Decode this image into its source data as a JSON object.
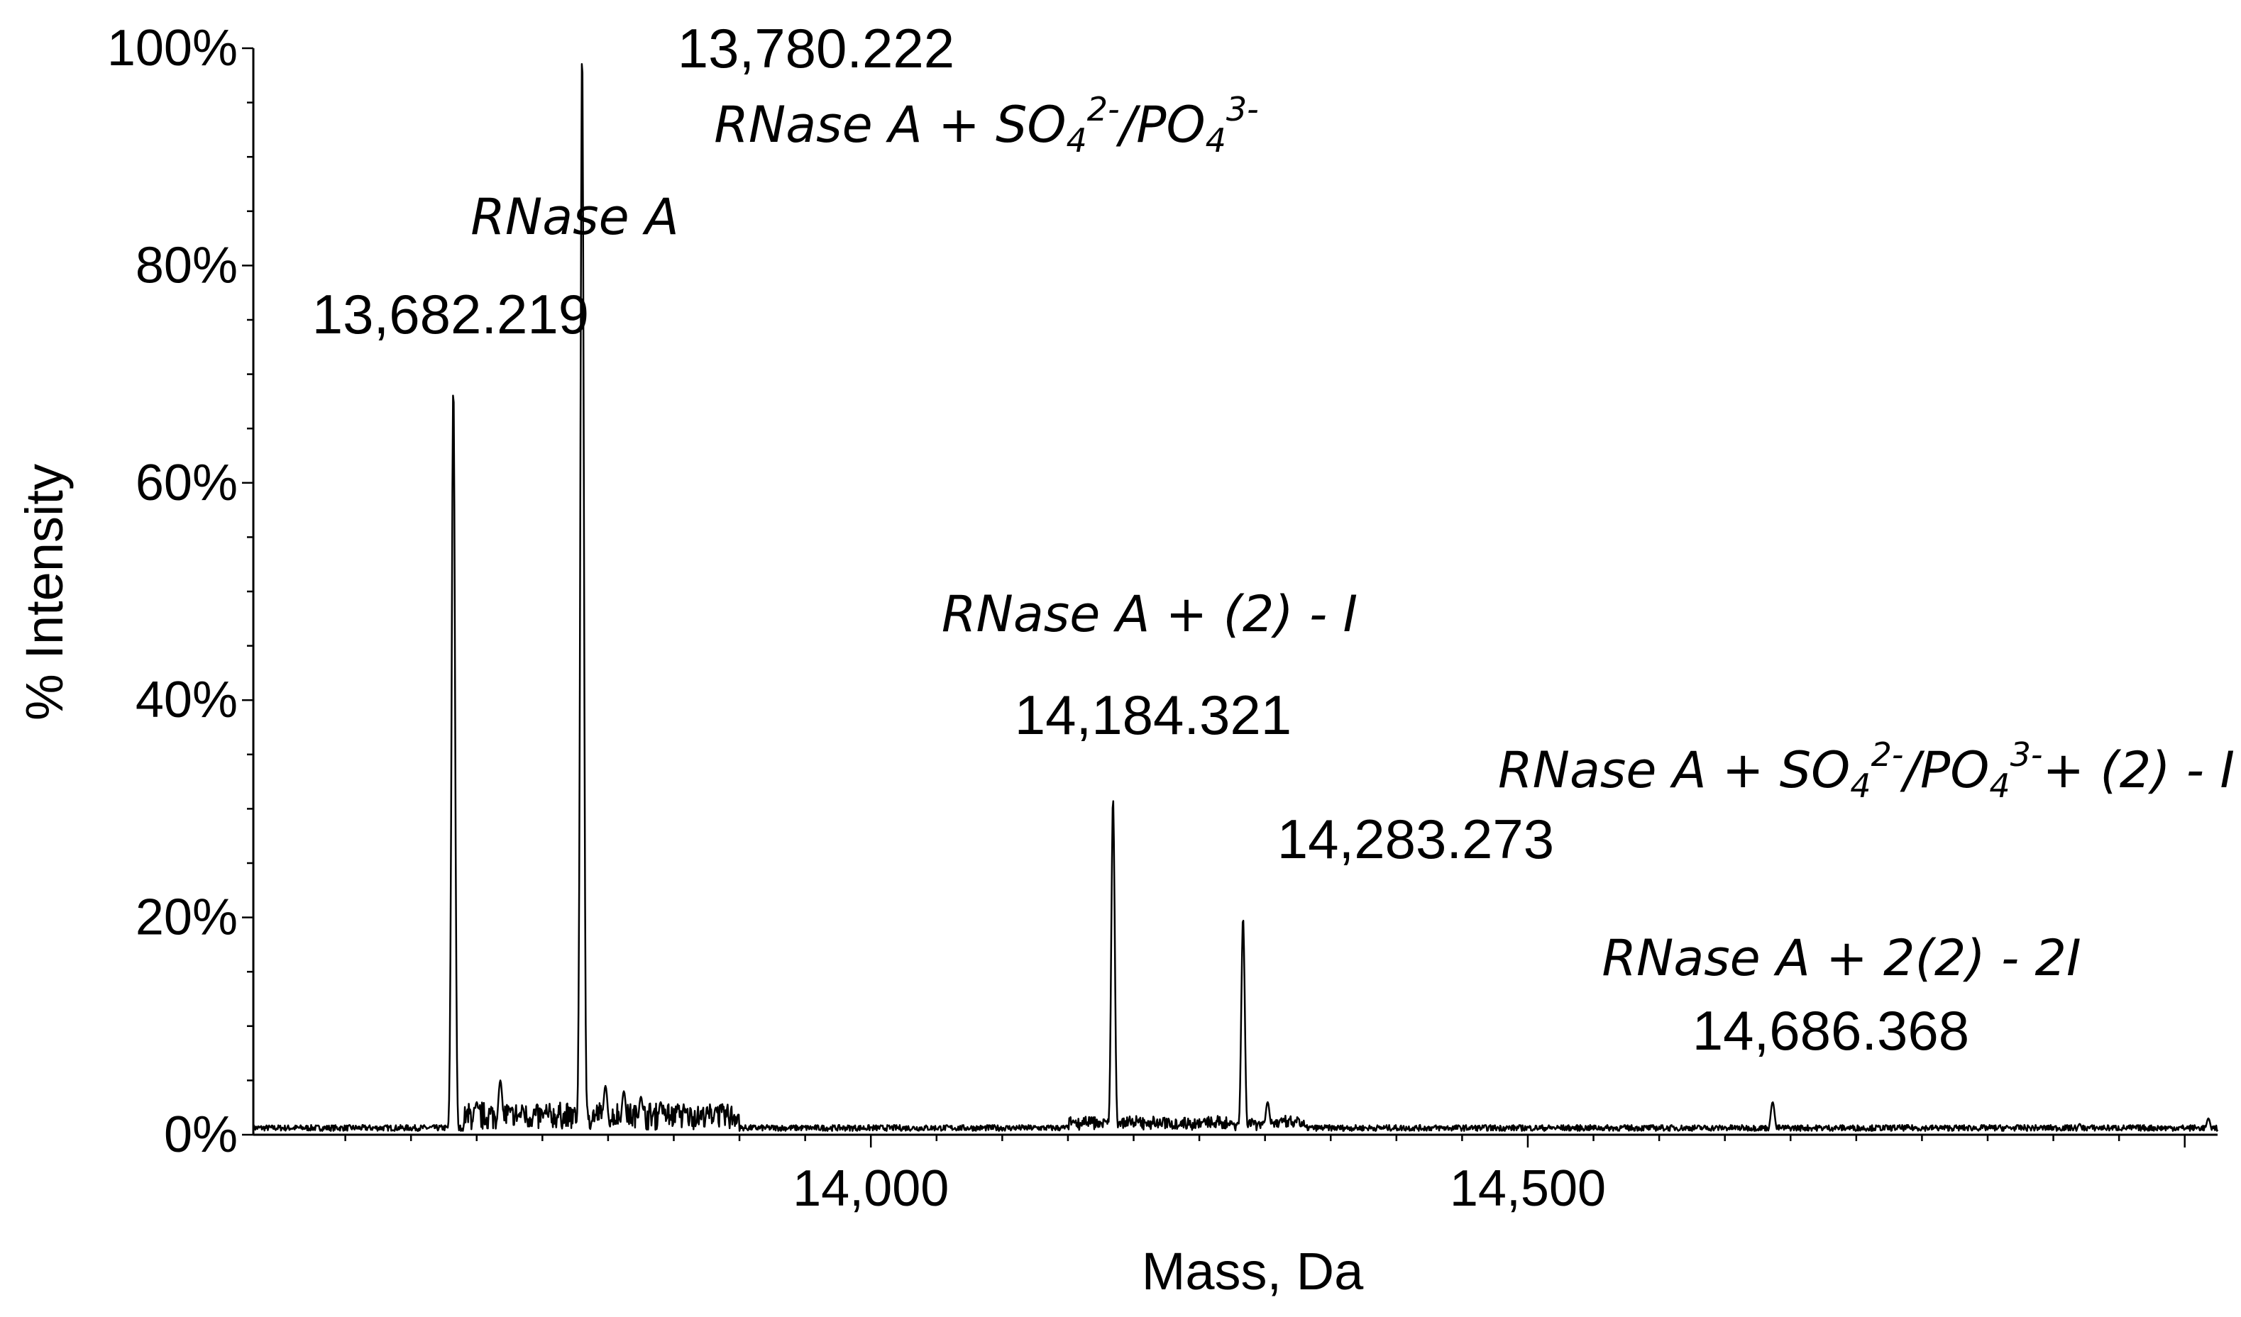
{
  "chart_data": {
    "type": "line",
    "xlabel": "Mass, Da",
    "ylabel": "% Intensity",
    "xlim": [
      13530,
      15025
    ],
    "ylim": [
      0,
      100
    ],
    "x_ticks": [
      {
        "value": 14000,
        "label": "14,000"
      },
      {
        "value": 14500,
        "label": "14,500"
      }
    ],
    "y_ticks": [
      {
        "value": 0,
        "label": "0%"
      },
      {
        "value": 20,
        "label": "20%"
      },
      {
        "value": 40,
        "label": "40%"
      },
      {
        "value": 60,
        "label": "60%"
      },
      {
        "value": 80,
        "label": "80%"
      },
      {
        "value": 100,
        "label": "100%"
      }
    ],
    "peaks": [
      {
        "mass": 13682.219,
        "intensity": 69,
        "mass_label": "13,682.219",
        "species": [
          "RNase A"
        ]
      },
      {
        "mass": 13780.222,
        "intensity": 100,
        "mass_label": "13,780.222",
        "species": [
          "RNase A + SO",
          "4",
          "2-",
          "/PO",
          "4",
          "3-",
          ""
        ]
      },
      {
        "mass": 14184.321,
        "intensity": 31,
        "mass_label": "14,184.321",
        "species": [
          "RNase A + (2) - I"
        ]
      },
      {
        "mass": 14283.273,
        "intensity": 20,
        "mass_label": "14,283.273",
        "species": [
          "RNase A + SO",
          "4",
          "2-",
          "/PO",
          "4",
          "3-",
          "+ (2) - I"
        ]
      },
      {
        "mass": 14686.368,
        "intensity": 3,
        "mass_label": "14,686.368",
        "species": [
          "RNase A + 2(2) - 2I"
        ]
      }
    ],
    "minor_peaks": [
      {
        "mass": 13700,
        "intensity": 3
      },
      {
        "mass": 13718,
        "intensity": 5
      },
      {
        "mass": 13735,
        "intensity": 2.5
      },
      {
        "mass": 13798,
        "intensity": 4.5
      },
      {
        "mass": 13812,
        "intensity": 4
      },
      {
        "mass": 13825,
        "intensity": 3.5
      },
      {
        "mass": 13840,
        "intensity": 3
      },
      {
        "mass": 13853,
        "intensity": 2.5
      },
      {
        "mass": 13882,
        "intensity": 2.5
      },
      {
        "mass": 14302,
        "intensity": 3
      },
      {
        "mass": 14920,
        "intensity": 1
      },
      {
        "mass": 15018,
        "intensity": 1.5
      }
    ]
  }
}
